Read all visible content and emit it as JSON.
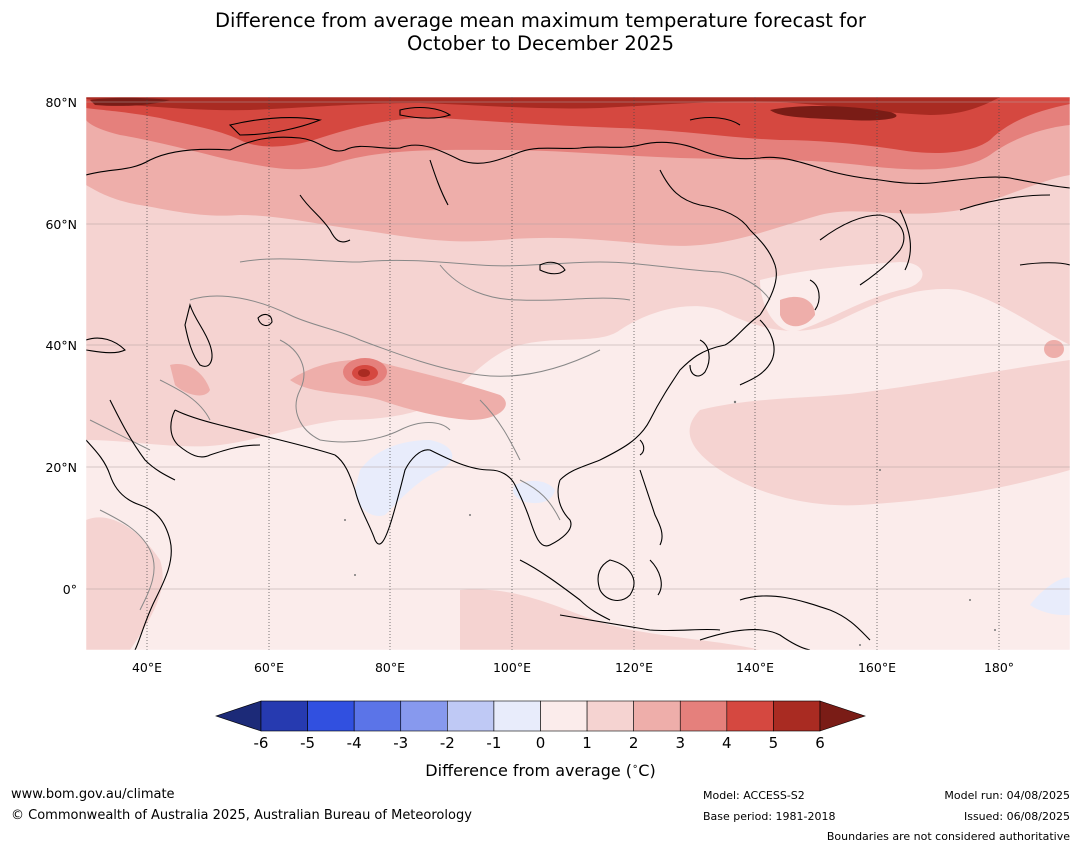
{
  "title": {
    "line1": "Difference from average mean maximum temperature forecast for",
    "line2": "October to December 2025"
  },
  "map": {
    "lat_labels": [
      "80°N",
      "60°N",
      "40°N",
      "20°N",
      "0°"
    ],
    "lon_labels": [
      "40°E",
      "60°E",
      "80°E",
      "100°E",
      "120°E",
      "140°E",
      "160°E",
      "180°"
    ]
  },
  "colorbar": {
    "ticks": [
      "-6",
      "-5",
      "-4",
      "-3",
      "-2",
      "-1",
      "0",
      "1",
      "2",
      "3",
      "4",
      "5",
      "6"
    ],
    "colors": [
      "#1c2a78",
      "#263ab0",
      "#3150e0",
      "#5b74e8",
      "#8799ee",
      "#bfc9f5",
      "#e8ecfb",
      "#fbeceb",
      "#f5d3d1",
      "#eeaeaa",
      "#e5807c",
      "#d54840",
      "#a92b22",
      "#7a1c16"
    ],
    "label": "Difference from average ($^\\circ$C)",
    "label_text": "Difference from average (",
    "label_unit": "C)"
  },
  "footer": {
    "website": "www.bom.gov.au/climate",
    "copyright": "© Commonwealth of Australia 2025, Australian Bureau of Meteorology",
    "model": "Model: ACCESS-S2",
    "base_period": "Base period: 1981-2018",
    "model_run": "Model run: 04/08/2025",
    "issued": "Issued: 06/08/2025",
    "disclaimer": "Boundaries are not considered authoritative"
  }
}
